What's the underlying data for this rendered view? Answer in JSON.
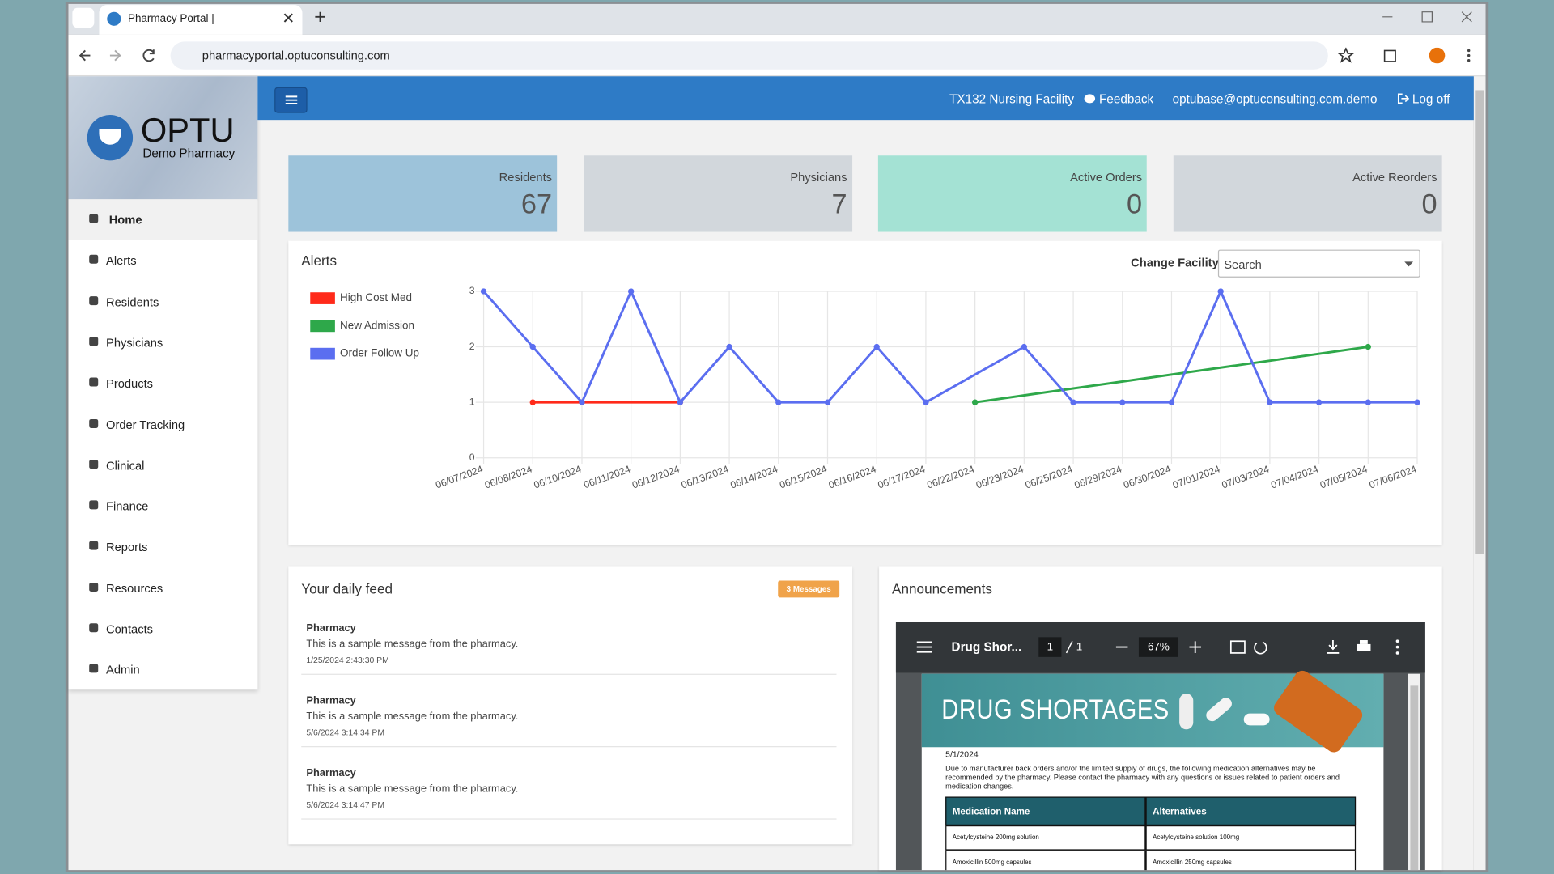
{
  "browser": {
    "tab_title": "Pharmacy Portal |",
    "url": "pharmacyportal.optuconsulting.com"
  },
  "header": {
    "facility": "TX132 Nursing Facility",
    "feedback": "Feedback",
    "email": "optubase@optuconsulting.com.demo",
    "logout": "Log off"
  },
  "sidebar": {
    "brand": "OPTU",
    "subtitle": "Demo Pharmacy",
    "menu": [
      "Home",
      "Alerts",
      "Residents",
      "Physicians",
      "Products",
      "Order Tracking",
      "Clinical",
      "Finance",
      "Reports",
      "Resources",
      "Contacts",
      "Admin"
    ]
  },
  "stats": [
    {
      "label": "Residents",
      "value": "67",
      "color": "#9dc3da"
    },
    {
      "label": "Physicians",
      "value": "7",
      "color": "#d2d7dc"
    },
    {
      "label": "Active Orders",
      "value": "0",
      "color": "#a4e2d4"
    },
    {
      "label": "Active Reorders",
      "value": "0",
      "color": "#d2d7dc"
    }
  ],
  "filter": {
    "label": "Change Facility",
    "placeholder": "Search"
  },
  "chart_data": {
    "type": "line",
    "title": "Alerts",
    "categories": [
      "06/07/2024",
      "06/08/2024",
      "06/10/2024",
      "06/11/2024",
      "06/12/2024",
      "06/13/2024",
      "06/14/2024",
      "06/15/2024",
      "06/16/2024",
      "06/17/2024",
      "06/22/2024",
      "06/23/2024",
      "06/25/2024",
      "06/29/2024",
      "06/30/2024",
      "07/01/2024",
      "07/03/2024",
      "07/04/2024",
      "07/05/2024",
      "07/06/2024"
    ],
    "series": [
      {
        "name": "High Cost Med",
        "color": "#ff2a1a",
        "values": [
          null,
          1,
          1,
          null,
          1,
          null,
          null,
          null,
          null,
          null,
          null,
          null,
          null,
          null,
          null,
          null,
          null,
          null,
          null,
          null
        ]
      },
      {
        "name": "New Admission",
        "color": "#2ea84a",
        "values": [
          null,
          null,
          null,
          null,
          null,
          null,
          null,
          null,
          null,
          null,
          1,
          null,
          null,
          null,
          null,
          null,
          null,
          null,
          2,
          null
        ]
      },
      {
        "name": "Order Follow Up",
        "color": "#5b6ef0",
        "values": [
          3,
          2,
          1,
          3,
          1,
          2,
          1,
          1,
          2,
          1,
          null,
          2,
          1,
          1,
          1,
          3,
          1,
          1,
          1,
          1
        ]
      }
    ],
    "ylim": [
      0,
      3
    ],
    "yticks": [
      0,
      1,
      2,
      3
    ],
    "grid": true,
    "span_gaps": true,
    "legend": "left"
  },
  "feed": {
    "title": "Your daily feed",
    "badge": "3 Messages",
    "items": [
      {
        "from": "Pharmacy",
        "text": "This is a sample message from the pharmacy.",
        "time": "1/25/2024 2:43:30 PM"
      },
      {
        "from": "Pharmacy",
        "text": "This is a sample message from the pharmacy.",
        "time": "5/6/2024 3:14:34 PM"
      },
      {
        "from": "Pharmacy",
        "text": "This is a sample message from the pharmacy.",
        "time": "5/6/2024 3:14:47 PM"
      }
    ]
  },
  "announcements": {
    "title": "Announcements",
    "viewer": {
      "doc_title": "Drug Shor...",
      "page": "1",
      "pages": "1",
      "zoom": "67%"
    },
    "document": {
      "heading": "DRUG SHORTAGES",
      "date": "5/1/2024",
      "body": "Due to manufacturer back orders and/or the limited supply of drugs, the following medication alternatives may be recommended by the pharmacy. Please contact the pharmacy with any questions or issues related to patient orders and medication changes.",
      "table": {
        "headers": [
          "Medication Name",
          "Alternatives"
        ],
        "rows": [
          [
            "Acetylcysteine 200mg solution",
            "Acetylcysteine solution 100mg"
          ],
          [
            "Amoxicillin 500mg capsules",
            "Amoxicillin 250mg capsules"
          ]
        ]
      }
    }
  }
}
